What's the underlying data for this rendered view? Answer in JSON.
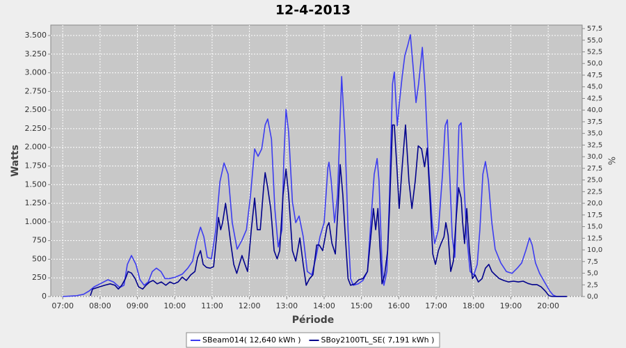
{
  "chart_data": {
    "type": "line",
    "title": "12-4-2013",
    "xlabel": "Période",
    "ylabel": "Watts",
    "y2label": "%",
    "xlim": [
      6.68,
      20.91
    ],
    "xticks": [
      {
        "value": 7,
        "label": "07:00"
      },
      {
        "value": 8,
        "label": "08:00"
      },
      {
        "value": 9,
        "label": "09:00"
      },
      {
        "value": 10,
        "label": "10:00"
      },
      {
        "value": 11,
        "label": "11:00"
      },
      {
        "value": 12,
        "label": "12:00"
      },
      {
        "value": 13,
        "label": "13:00"
      },
      {
        "value": 14,
        "label": "14:00"
      },
      {
        "value": 15,
        "label": "15:00"
      },
      {
        "value": 16,
        "label": "16:00"
      },
      {
        "value": 17,
        "label": "17:00"
      },
      {
        "value": 18,
        "label": "18:00"
      },
      {
        "value": 19,
        "label": "19:00"
      },
      {
        "value": 20,
        "label": "20:00"
      }
    ],
    "ylim": [
      0,
      3640
    ],
    "yticks": [
      0,
      250,
      500,
      750,
      {
        "value": 1000,
        "label": "1.000"
      },
      {
        "value": 1250,
        "label": "1.250"
      },
      {
        "value": 1500,
        "label": "1.500"
      },
      {
        "value": 1750,
        "label": "1.750"
      },
      {
        "value": 2000,
        "label": "2.000"
      },
      {
        "value": 2250,
        "label": "2.250"
      },
      {
        "value": 2500,
        "label": "2.500"
      },
      {
        "value": 2750,
        "label": "2.750"
      },
      {
        "value": 3000,
        "label": "3.000"
      },
      {
        "value": 3250,
        "label": "3.250"
      },
      {
        "value": 3500,
        "label": "3.500"
      }
    ],
    "y2lim": [
      0,
      58.25
    ],
    "y2ticks": [
      {
        "value": 0,
        "label": "0,0"
      },
      {
        "value": 2.5,
        "label": "2,5"
      },
      {
        "value": 5,
        "label": "5,0"
      },
      {
        "value": 7.5,
        "label": "7,5"
      },
      {
        "value": 10,
        "label": "10,0"
      },
      {
        "value": 12.5,
        "label": "12,5"
      },
      {
        "value": 15,
        "label": "15,0"
      },
      {
        "value": 17.5,
        "label": "17,5"
      },
      {
        "value": 20,
        "label": "20,0"
      },
      {
        "value": 22.5,
        "label": "22,5"
      },
      {
        "value": 25,
        "label": "25,0"
      },
      {
        "value": 27.5,
        "label": "27,5"
      },
      {
        "value": 30,
        "label": "30,0"
      },
      {
        "value": 32.5,
        "label": "32,5"
      },
      {
        "value": 35,
        "label": "35,0"
      },
      {
        "value": 37.5,
        "label": "37,5"
      },
      {
        "value": 40,
        "label": "40,0"
      },
      {
        "value": 42.5,
        "label": "42,5"
      },
      {
        "value": 45,
        "label": "45,0"
      },
      {
        "value": 47.5,
        "label": "47,5"
      },
      {
        "value": 50,
        "label": "50,0"
      },
      {
        "value": 52.5,
        "label": "52,5"
      },
      {
        "value": 55,
        "label": "55,0"
      },
      {
        "value": 57.5,
        "label": "57,5"
      }
    ],
    "grid": true,
    "legend": "bottom",
    "series": [
      {
        "name": "SBeam014( 12,640 kWh )",
        "color": "#3c3cf0",
        "x": [
          7.0,
          7.37,
          7.56,
          7.71,
          7.84,
          8.02,
          8.21,
          8.36,
          8.53,
          8.64,
          8.73,
          8.84,
          8.96,
          9.07,
          9.18,
          9.29,
          9.4,
          9.51,
          9.63,
          9.74,
          9.85,
          10.02,
          10.2,
          10.35,
          10.48,
          10.59,
          10.69,
          10.78,
          10.87,
          10.98,
          11.1,
          11.21,
          11.32,
          11.43,
          11.54,
          11.67,
          11.8,
          11.92,
          12.03,
          12.14,
          12.23,
          12.33,
          12.42,
          12.49,
          12.59,
          12.68,
          12.77,
          12.87,
          12.92,
          12.98,
          13.05,
          13.15,
          13.24,
          13.33,
          13.44,
          13.55,
          13.67,
          13.78,
          13.89,
          14.0,
          14.1,
          14.13,
          14.19,
          14.28,
          14.36,
          14.47,
          14.56,
          14.64,
          14.71,
          14.78,
          14.91,
          15.04,
          15.16,
          15.25,
          15.34,
          15.42,
          15.47,
          15.55,
          15.6,
          15.68,
          15.75,
          15.83,
          15.88,
          15.96,
          16.01,
          16.09,
          16.16,
          16.24,
          16.31,
          16.39,
          16.46,
          16.53,
          16.63,
          16.7,
          16.8,
          16.89,
          16.96,
          17.06,
          17.17,
          17.24,
          17.3,
          17.37,
          17.43,
          17.5,
          17.56,
          17.61,
          17.67,
          17.74,
          17.82,
          17.91,
          18.01,
          18.1,
          18.17,
          18.25,
          18.32,
          18.4,
          18.49,
          18.58,
          18.73,
          18.88,
          19.03,
          19.18,
          19.29,
          19.4,
          19.5,
          19.57,
          19.66,
          19.77,
          19.9,
          20.04,
          20.13,
          20.22,
          20.5
        ],
        "values": [
          0,
          10,
          30,
          75,
          130,
          175,
          225,
          195,
          120,
          150,
          430,
          550,
          430,
          225,
          150,
          195,
          335,
          380,
          335,
          240,
          240,
          260,
          300,
          380,
          475,
          755,
          930,
          800,
          525,
          505,
          895,
          1540,
          1790,
          1640,
          990,
          635,
          755,
          895,
          1360,
          1980,
          1880,
          1980,
          2300,
          2380,
          2110,
          1180,
          665,
          895,
          1830,
          2510,
          2200,
          1270,
          990,
          1080,
          805,
          335,
          290,
          525,
          805,
          990,
          1730,
          1800,
          1550,
          990,
          1360,
          2950,
          2110,
          895,
          240,
          150,
          170,
          215,
          335,
          990,
          1640,
          1850,
          1550,
          430,
          150,
          335,
          1360,
          2850,
          3010,
          2290,
          2570,
          2950,
          3230,
          3370,
          3510,
          3040,
          2600,
          2850,
          3340,
          2810,
          1730,
          1000,
          710,
          895,
          1640,
          2290,
          2370,
          1550,
          800,
          525,
          1460,
          2290,
          2330,
          1550,
          800,
          335,
          290,
          430,
          895,
          1640,
          1810,
          1550,
          990,
          635,
          450,
          335,
          310,
          385,
          450,
          615,
          785,
          690,
          450,
          310,
          195,
          75,
          20,
          0,
          0
        ]
      },
      {
        "name": "SBoy2100TL_SE( 7,191 kWh )",
        "color": "#00008c",
        "x": [
          7.74,
          7.8,
          7.93,
          8.12,
          8.27,
          8.4,
          8.49,
          8.58,
          8.68,
          8.75,
          8.84,
          8.94,
          9.03,
          9.14,
          9.23,
          9.33,
          9.42,
          9.53,
          9.64,
          9.76,
          9.87,
          9.98,
          10.09,
          10.2,
          10.31,
          10.43,
          10.54,
          10.61,
          10.69,
          10.76,
          10.85,
          10.95,
          11.04,
          11.12,
          11.17,
          11.23,
          11.28,
          11.36,
          11.43,
          11.5,
          11.58,
          11.66,
          11.73,
          11.8,
          11.88,
          11.95,
          12.05,
          12.14,
          12.21,
          12.29,
          12.38,
          12.42,
          12.49,
          12.57,
          12.66,
          12.74,
          12.81,
          12.9,
          12.98,
          13.05,
          13.15,
          13.24,
          13.35,
          13.44,
          13.52,
          13.61,
          13.7,
          13.8,
          13.87,
          13.96,
          14.08,
          14.13,
          14.21,
          14.3,
          14.37,
          14.43,
          14.5,
          14.58,
          14.64,
          14.71,
          14.82,
          14.93,
          15.04,
          15.16,
          15.25,
          15.32,
          15.38,
          15.44,
          15.5,
          15.55,
          15.62,
          15.7,
          15.75,
          15.83,
          15.88,
          15.96,
          16.01,
          16.09,
          16.18,
          16.27,
          16.35,
          16.44,
          16.52,
          16.61,
          16.69,
          16.76,
          16.83,
          16.91,
          16.98,
          17.06,
          17.13,
          17.21,
          17.26,
          17.32,
          17.39,
          17.46,
          17.54,
          17.6,
          17.67,
          17.71,
          17.76,
          17.82,
          17.89,
          17.97,
          18.04,
          18.13,
          18.23,
          18.32,
          18.41,
          18.49,
          18.58,
          18.69,
          18.81,
          18.94,
          19.07,
          19.2,
          19.33,
          19.46,
          19.57,
          19.7,
          19.81,
          19.92,
          20.02,
          20.11,
          20.5
        ],
        "values": [
          10,
          100,
          120,
          150,
          170,
          150,
          100,
          150,
          240,
          335,
          315,
          240,
          130,
          100,
          150,
          195,
          215,
          170,
          195,
          150,
          195,
          170,
          195,
          260,
          215,
          290,
          335,
          520,
          615,
          430,
          390,
          380,
          400,
          800,
          1060,
          895,
          990,
          1250,
          990,
          710,
          430,
          310,
          430,
          550,
          430,
          335,
          895,
          1320,
          895,
          895,
          1460,
          1660,
          1460,
          1180,
          615,
          505,
          615,
          1360,
          1710,
          1360,
          615,
          475,
          785,
          430,
          150,
          240,
          290,
          690,
          690,
          615,
          940,
          990,
          710,
          570,
          1180,
          1770,
          1360,
          710,
          240,
          150,
          170,
          225,
          240,
          335,
          800,
          1180,
          895,
          1180,
          615,
          170,
          290,
          615,
          1180,
          2300,
          2300,
          1640,
          1180,
          1740,
          2300,
          1550,
          1180,
          1550,
          2020,
          1980,
          1740,
          1990,
          1360,
          570,
          430,
          615,
          710,
          800,
          990,
          820,
          335,
          475,
          1080,
          1460,
          1320,
          990,
          710,
          1180,
          615,
          240,
          290,
          195,
          240,
          380,
          430,
          335,
          290,
          240,
          215,
          195,
          205,
          195,
          205,
          175,
          160,
          160,
          130,
          75,
          10,
          0,
          0
        ]
      }
    ]
  }
}
